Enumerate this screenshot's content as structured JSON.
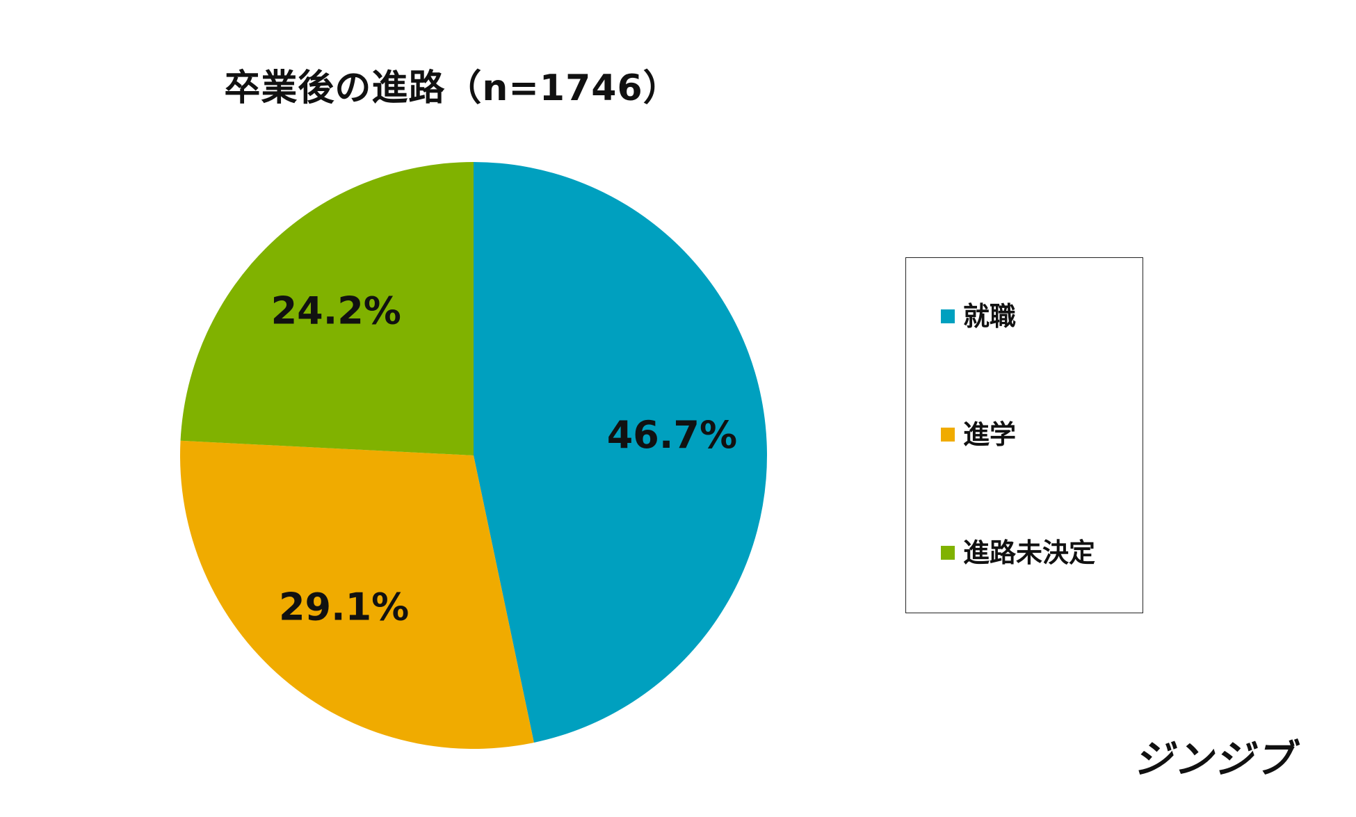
{
  "chart_data": {
    "type": "pie",
    "title": "卒業後の進路（n=1746）",
    "slices": [
      {
        "label": "就職",
        "value": 46.7,
        "display": "46.7%",
        "color": "#00a0bf"
      },
      {
        "label": "進学",
        "value": 29.1,
        "display": "29.1%",
        "color": "#f0ab00"
      },
      {
        "label": "進路未決定",
        "value": 24.2,
        "display": "24.2%",
        "color": "#80b200"
      }
    ],
    "legend_position": "right"
  },
  "brand": {
    "logo_text": "ジンジブ"
  }
}
